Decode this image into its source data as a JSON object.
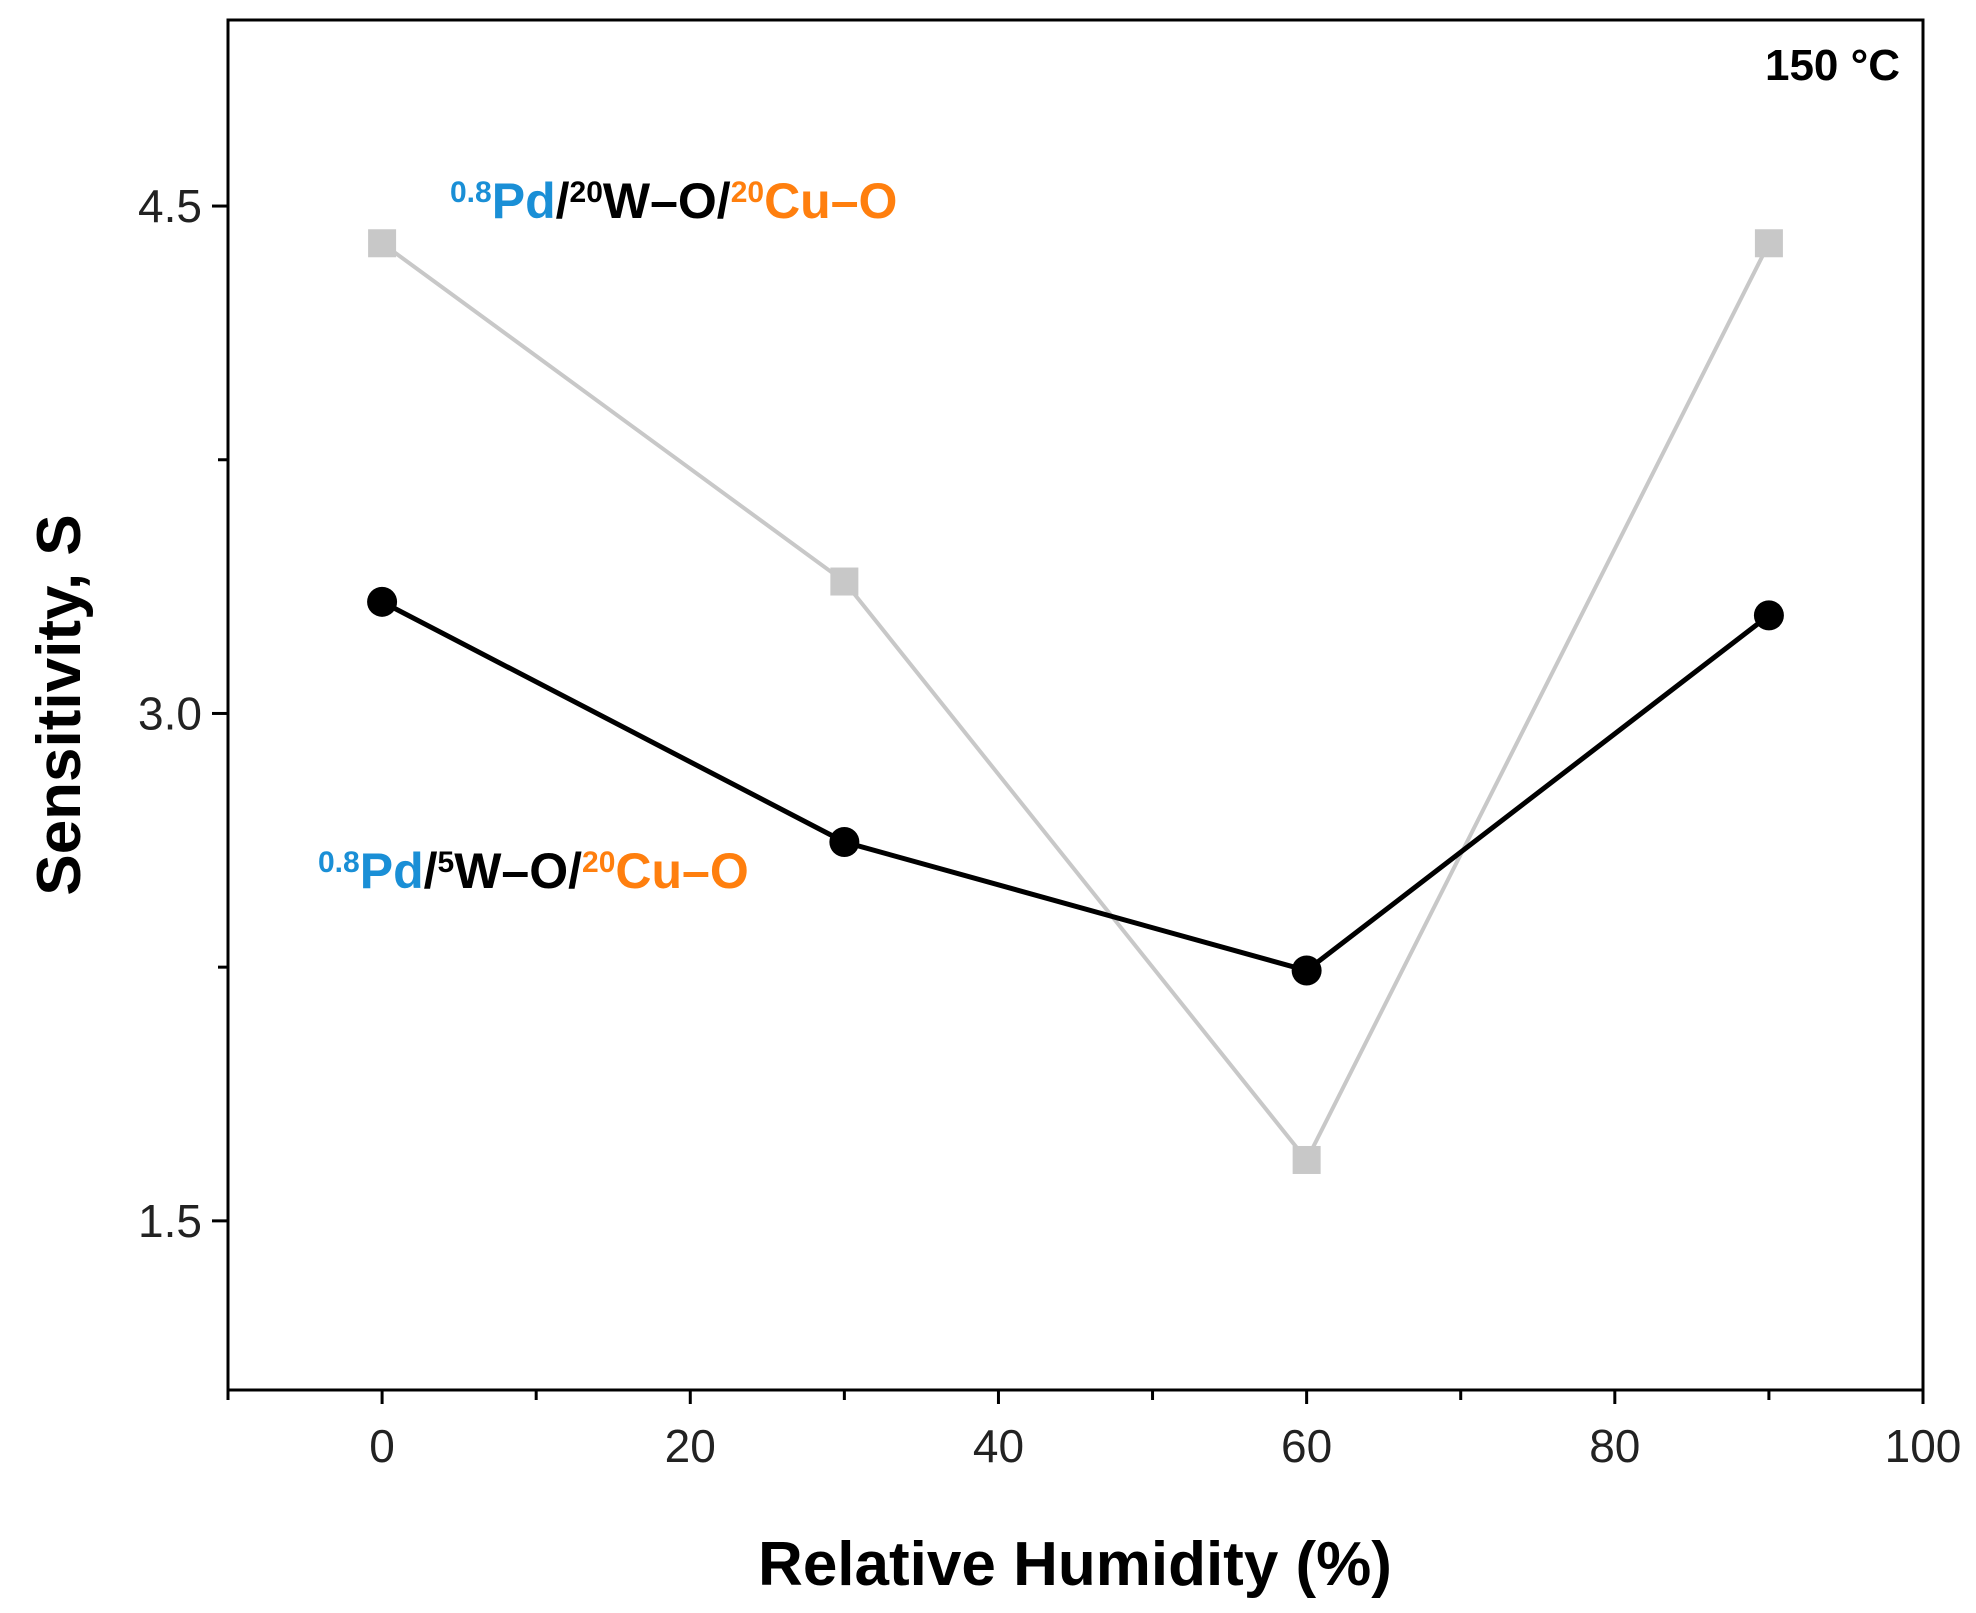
{
  "chart_data": {
    "type": "line",
    "title": "",
    "xlabel": "Relative Humidity (%)",
    "ylabel": "Sensitivity, S",
    "xlim": [
      -10,
      100
    ],
    "ylim": [
      1.0,
      5.05
    ],
    "x_ticks": [
      0,
      20,
      40,
      60,
      80,
      100
    ],
    "x_tick_labels": [
      "0",
      "20",
      "40",
      "60",
      "80",
      "100"
    ],
    "y_major_ticks": [
      1.5,
      3.0,
      4.5
    ],
    "y_tick_labels": [
      "1.5",
      "3.0",
      "4.5"
    ],
    "grid": false,
    "series": [
      {
        "name": "0.8Pd/20W–O/20Cu–O",
        "label_parts": [
          {
            "text": "0.8",
            "sup": true,
            "color": "#1a8fd6"
          },
          {
            "text": "Pd",
            "sup": false,
            "color": "#1a8fd6"
          },
          {
            "text": "/",
            "sup": false,
            "color": "#000000"
          },
          {
            "text": "20",
            "sup": true,
            "color": "#000000"
          },
          {
            "text": "W–O/",
            "sup": false,
            "color": "#000000"
          },
          {
            "text": "20",
            "sup": true,
            "color": "#ff7f0e"
          },
          {
            "text": "Cu–O",
            "sup": false,
            "color": "#ff7f0e"
          }
        ],
        "color": "#c8c8c8",
        "marker": "square",
        "x": [
          0,
          30,
          60,
          90
        ],
        "y": [
          4.39,
          3.39,
          1.68,
          4.39
        ]
      },
      {
        "name": "0.8Pd/5W–O/20Cu–O",
        "label_parts": [
          {
            "text": "0.8",
            "sup": true,
            "color": "#1a8fd6"
          },
          {
            "text": "Pd",
            "sup": false,
            "color": "#1a8fd6"
          },
          {
            "text": "/",
            "sup": false,
            "color": "#000000"
          },
          {
            "text": "5",
            "sup": true,
            "color": "#000000"
          },
          {
            "text": "W–O/",
            "sup": false,
            "color": "#000000"
          },
          {
            "text": "20",
            "sup": true,
            "color": "#ff7f0e"
          },
          {
            "text": "Cu–O",
            "sup": false,
            "color": "#ff7f0e"
          }
        ],
        "color": "#000000",
        "marker": "circle",
        "x": [
          0,
          30,
          60,
          90
        ],
        "y": [
          3.33,
          2.62,
          2.24,
          3.29
        ]
      }
    ],
    "annotations": [
      {
        "text": "150 °C",
        "position": "top-right"
      }
    ]
  }
}
